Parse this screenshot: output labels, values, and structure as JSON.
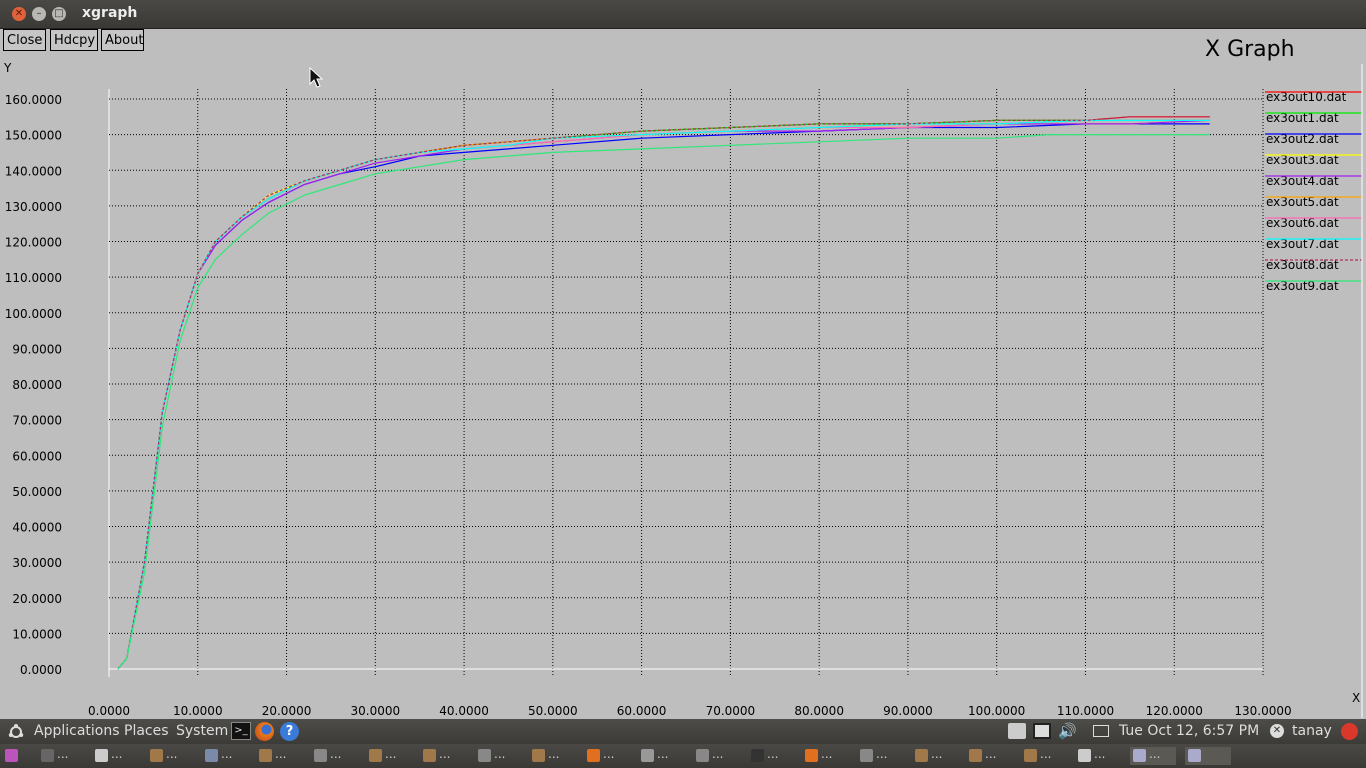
{
  "window": {
    "title": "xgraph"
  },
  "toolbar": {
    "close": "Close",
    "hdcpy": "Hdcpy",
    "about": "About"
  },
  "graph_title": "X Graph",
  "chart_data": {
    "type": "line",
    "title": "X Graph",
    "ylabel": "Y",
    "xlabel": "X",
    "grid": true,
    "legend_position": "right",
    "xlim": [
      0,
      130
    ],
    "ylim": [
      0,
      160
    ],
    "x_ticks": [
      "0.0000",
      "10.0000",
      "20.0000",
      "30.0000",
      "40.0000",
      "50.0000",
      "60.0000",
      "70.0000",
      "80.0000",
      "90.0000",
      "100.0000",
      "110.0000",
      "120.0000",
      "130.0000"
    ],
    "y_ticks": [
      "0.0000",
      "10.0000",
      "20.0000",
      "30.0000",
      "40.0000",
      "50.0000",
      "60.0000",
      "70.0000",
      "80.0000",
      "90.0000",
      "100.0000",
      "110.0000",
      "120.0000",
      "130.0000",
      "140.0000",
      "150.0000",
      "160.0000"
    ],
    "series": [
      {
        "name": "ex3out10.dat",
        "color": "#ff0000",
        "x": [
          1,
          2,
          4,
          6,
          8,
          10,
          12,
          15,
          18,
          22,
          26,
          30,
          35,
          40,
          45,
          50,
          60,
          70,
          80,
          90,
          100,
          110,
          115,
          124
        ],
        "y": [
          0,
          3,
          30,
          72,
          95,
          111,
          120,
          127,
          132,
          137,
          140,
          143,
          145,
          147,
          148,
          149,
          151,
          152,
          153,
          153,
          154,
          154,
          155,
          155
        ]
      },
      {
        "name": "ex3out1.dat",
        "color": "#00ee00",
        "x": [
          1,
          2,
          4,
          6,
          8,
          10,
          12,
          15,
          18,
          22,
          26,
          30,
          35,
          40,
          45,
          50,
          60,
          70,
          80,
          90,
          100,
          110,
          115,
          124
        ],
        "y": [
          0,
          3,
          30,
          72,
          95,
          111,
          120,
          127,
          132,
          137,
          140,
          143,
          145,
          147,
          148,
          149,
          151,
          152,
          153,
          153,
          154,
          154,
          154,
          154
        ]
      },
      {
        "name": "ex3out2.dat",
        "color": "#0000ff",
        "x": [
          1,
          2,
          4,
          6,
          8,
          10,
          12,
          15,
          18,
          22,
          26,
          30,
          35,
          40,
          45,
          50,
          60,
          70,
          80,
          90,
          100,
          110,
          115,
          124
        ],
        "y": [
          0,
          3,
          30,
          72,
          95,
          111,
          119,
          126,
          131,
          136,
          139,
          141,
          144,
          145,
          146,
          147,
          149,
          150,
          151,
          152,
          152,
          153,
          153,
          153
        ]
      },
      {
        "name": "ex3out3.dat",
        "color": "#ffff00",
        "x": [
          1,
          2,
          4,
          6,
          8,
          10,
          12,
          15,
          18,
          22,
          26,
          30,
          35,
          40,
          45,
          50,
          60,
          70,
          80,
          90,
          100,
          110,
          115,
          124
        ],
        "y": [
          0,
          3,
          30,
          72,
          95,
          111,
          120,
          127,
          133,
          137,
          140,
          143,
          145,
          146,
          147,
          148,
          150,
          151,
          152,
          152,
          153,
          153,
          153,
          154
        ]
      },
      {
        "name": "ex3out4.dat",
        "color": "#a020f0",
        "x": [
          1,
          2,
          4,
          6,
          8,
          10,
          12,
          15,
          18,
          22,
          26,
          30,
          35,
          40,
          45,
          50,
          60,
          70,
          80,
          90,
          100,
          110,
          115,
          124
        ],
        "y": [
          0,
          3,
          30,
          72,
          95,
          111,
          119,
          126,
          131,
          136,
          139,
          142,
          144,
          146,
          147,
          148,
          150,
          151,
          151,
          152,
          153,
          153,
          153,
          154
        ]
      },
      {
        "name": "ex3out5.dat",
        "color": "#ffa500",
        "x": [
          1,
          2,
          4,
          6,
          8,
          10,
          12,
          15,
          18,
          22,
          26,
          30,
          35,
          40,
          45,
          50,
          60,
          70,
          80,
          90,
          100,
          110,
          115,
          124
        ],
        "y": [
          0,
          3,
          30,
          72,
          95,
          111,
          120,
          127,
          132,
          137,
          140,
          143,
          145,
          147,
          148,
          149,
          150,
          151,
          152,
          153,
          153,
          154,
          154,
          154
        ]
      },
      {
        "name": "ex3out6.dat",
        "color": "#ff69b4",
        "x": [
          1,
          2,
          4,
          6,
          8,
          10,
          12,
          15,
          18,
          22,
          26,
          30,
          35,
          40,
          45,
          50,
          60,
          70,
          80,
          90,
          100,
          110,
          115,
          124
        ],
        "y": [
          0,
          3,
          30,
          72,
          95,
          111,
          120,
          127,
          132,
          137,
          140,
          143,
          145,
          146,
          147,
          148,
          150,
          151,
          152,
          152,
          153,
          154,
          154,
          154
        ]
      },
      {
        "name": "ex3out7.dat",
        "color": "#00ffff",
        "x": [
          1,
          2,
          4,
          6,
          8,
          10,
          12,
          15,
          18,
          22,
          26,
          30,
          35,
          40,
          45,
          50,
          60,
          70,
          80,
          90,
          100,
          110,
          115,
          124
        ],
        "y": [
          0,
          3,
          30,
          72,
          95,
          111,
          120,
          127,
          132,
          137,
          140,
          143,
          145,
          146,
          147,
          149,
          150,
          151,
          152,
          153,
          153,
          154,
          154,
          154
        ]
      },
      {
        "name": "ex3out8.dat",
        "color": "#b03060",
        "dashed": true,
        "x": [
          1,
          2,
          4,
          6,
          8,
          10,
          12,
          15,
          18,
          22,
          26,
          30,
          35,
          40,
          45,
          50,
          60,
          70,
          80,
          90,
          100,
          110,
          115,
          124
        ],
        "y": [
          0,
          3,
          30,
          72,
          95,
          111,
          120,
          127,
          133,
          137,
          140,
          143,
          145,
          147,
          148,
          149,
          151,
          152,
          153,
          153,
          154,
          154,
          155,
          155
        ]
      },
      {
        "name": "ex3out9.dat",
        "color": "#2ee87a",
        "x": [
          1,
          2,
          4,
          6,
          8,
          10,
          12,
          15,
          18,
          22,
          26,
          30,
          35,
          40,
          45,
          50,
          60,
          70,
          80,
          90,
          100,
          106,
          110,
          124
        ],
        "y": [
          0,
          3,
          27,
          68,
          92,
          107,
          115,
          122,
          128,
          133,
          136,
          139,
          141,
          143,
          144,
          145,
          146,
          147,
          148,
          149,
          149,
          150,
          150,
          150
        ]
      }
    ]
  },
  "panel": {
    "applications": "Applications",
    "places": "Places",
    "system": "System",
    "datetime": "Tue Oct 12,  6:57 PM",
    "user": "tanay"
  },
  "taskbar": {
    "ellipsis": "..."
  }
}
